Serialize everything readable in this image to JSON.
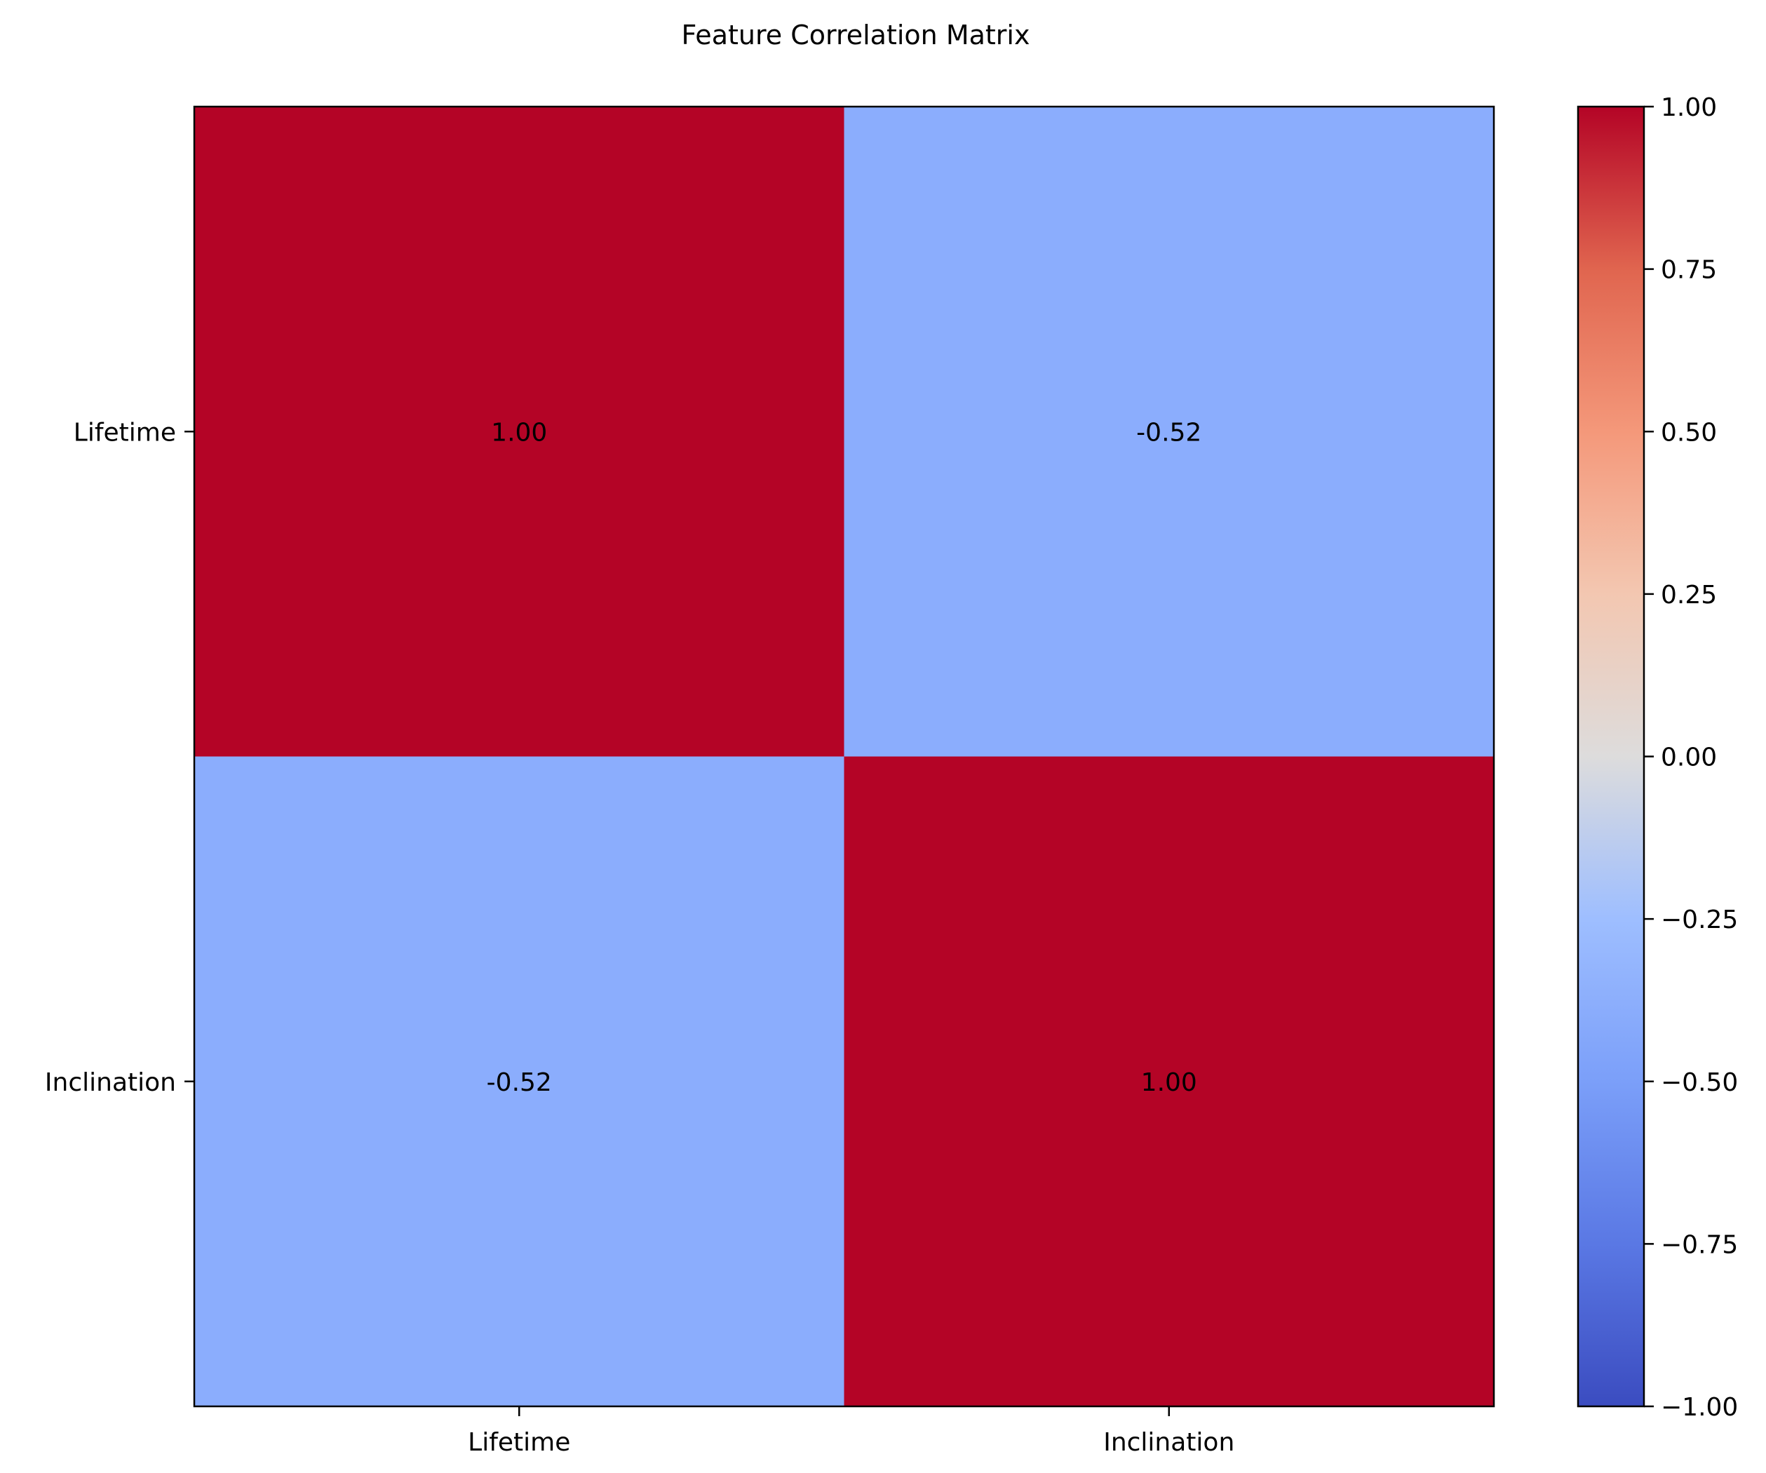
{
  "chart_data": {
    "type": "heatmap",
    "title": "Feature Correlation Matrix",
    "xlabel": "",
    "ylabel": "",
    "row_labels": [
      "Lifetime",
      "Inclination"
    ],
    "col_labels": [
      "Lifetime",
      "Inclination"
    ],
    "values": [
      [
        1.0,
        -0.52
      ],
      [
        -0.52,
        1.0
      ]
    ],
    "cell_labels": [
      [
        "1.00",
        "-0.52"
      ],
      [
        "-0.52",
        "1.00"
      ]
    ],
    "colormap": "coolwarm",
    "colorbar": {
      "range": [
        -1.0,
        1.0
      ],
      "ticks": [
        1.0,
        0.75,
        0.5,
        0.25,
        0.0,
        -0.25,
        -0.5,
        -0.75,
        -1.0
      ],
      "tick_labels": [
        "1.00",
        "0.75",
        "0.50",
        "0.25",
        "0.00",
        "−0.25",
        "−0.50",
        "−0.75",
        "−1.00"
      ],
      "placement": "right"
    },
    "colors": {
      "high": "#b40426",
      "mid": "#dddddd",
      "low": "#3b4cc0",
      "cell_negative_052": "#8badfd"
    },
    "grid": false
  }
}
